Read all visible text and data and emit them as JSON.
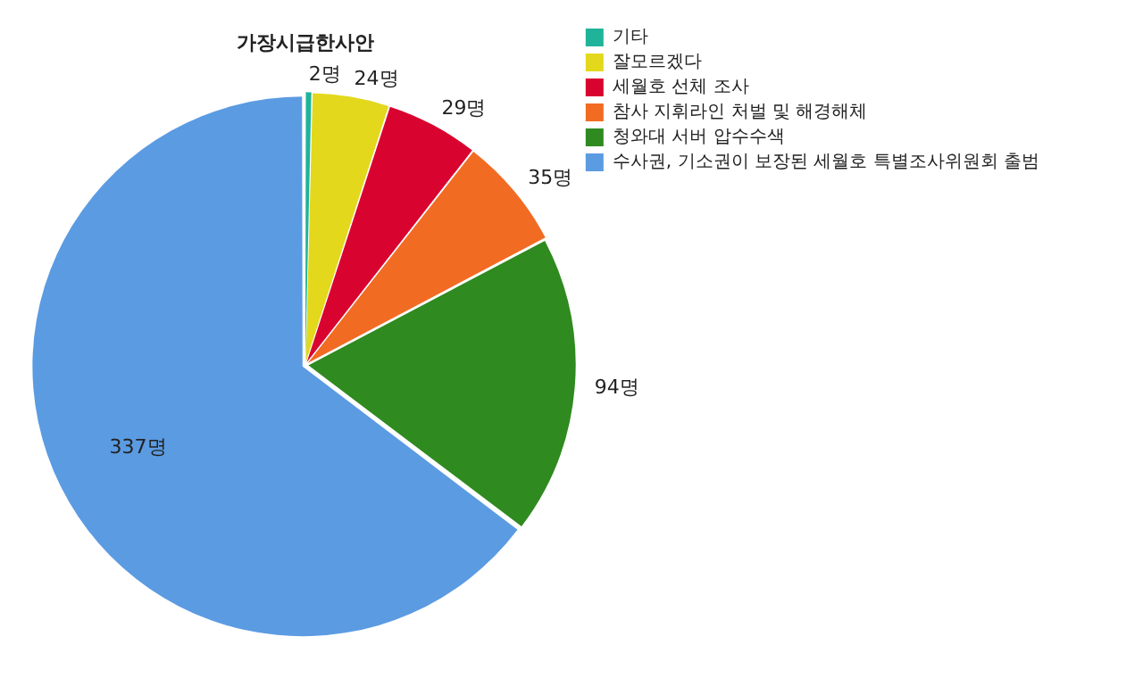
{
  "chart_data": {
    "type": "pie",
    "title": "가장시급한사안",
    "categories": [
      "기타",
      "잘모르겠다",
      "세월호 선체 조사",
      "참사 지휘라인 처벌 및 해경해체",
      "청와대 서버 압수수색",
      "수사권, 기소권이 보장된 세월호 특별조사위원회 출범"
    ],
    "values": [
      2,
      24,
      29,
      35,
      94,
      337
    ],
    "colors": [
      "#1fb39a",
      "#e3d81c",
      "#d8042f",
      "#f26b22",
      "#2f8a1f",
      "#5b9be2"
    ],
    "value_labels": [
      "2명",
      "24명",
      "29명",
      "35명",
      "94명",
      "337명"
    ],
    "legend": "top right"
  }
}
